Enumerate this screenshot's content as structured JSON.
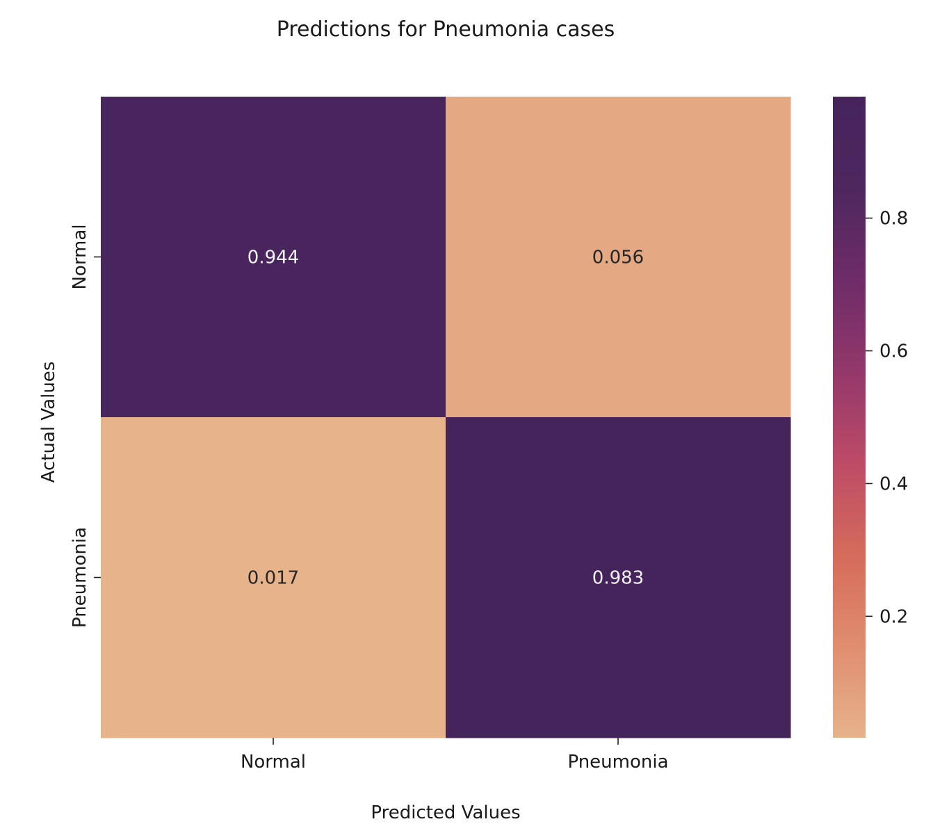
{
  "chart_data": {
    "type": "heatmap",
    "title": "Predictions for Pneumonia cases",
    "xlabel": "Predicted Values",
    "ylabel": "Actual Values",
    "x_categories": [
      "Normal",
      "Pneumonia"
    ],
    "y_categories": [
      "Normal",
      "Pneumonia"
    ],
    "cells": [
      [
        {
          "value": 0.944,
          "label": "0.944"
        },
        {
          "value": 0.056,
          "label": "0.056"
        }
      ],
      [
        {
          "value": 0.017,
          "label": "0.017"
        },
        {
          "value": 0.983,
          "label": "0.983"
        }
      ]
    ],
    "colorbar": {
      "range": [
        0.017,
        0.983
      ],
      "ticks": [
        {
          "value": 0.2,
          "label": "0.2"
        },
        {
          "value": 0.4,
          "label": "0.4"
        },
        {
          "value": 0.6,
          "label": "0.6"
        },
        {
          "value": 0.8,
          "label": "0.8"
        }
      ],
      "colors": [
        "#e6b38b",
        "#e08d6e",
        "#d56b5b",
        "#bd4b67",
        "#93386b",
        "#6e2c68",
        "#4e275f",
        "#45245b"
      ]
    },
    "grid": false,
    "legend": "colorbar-right"
  }
}
